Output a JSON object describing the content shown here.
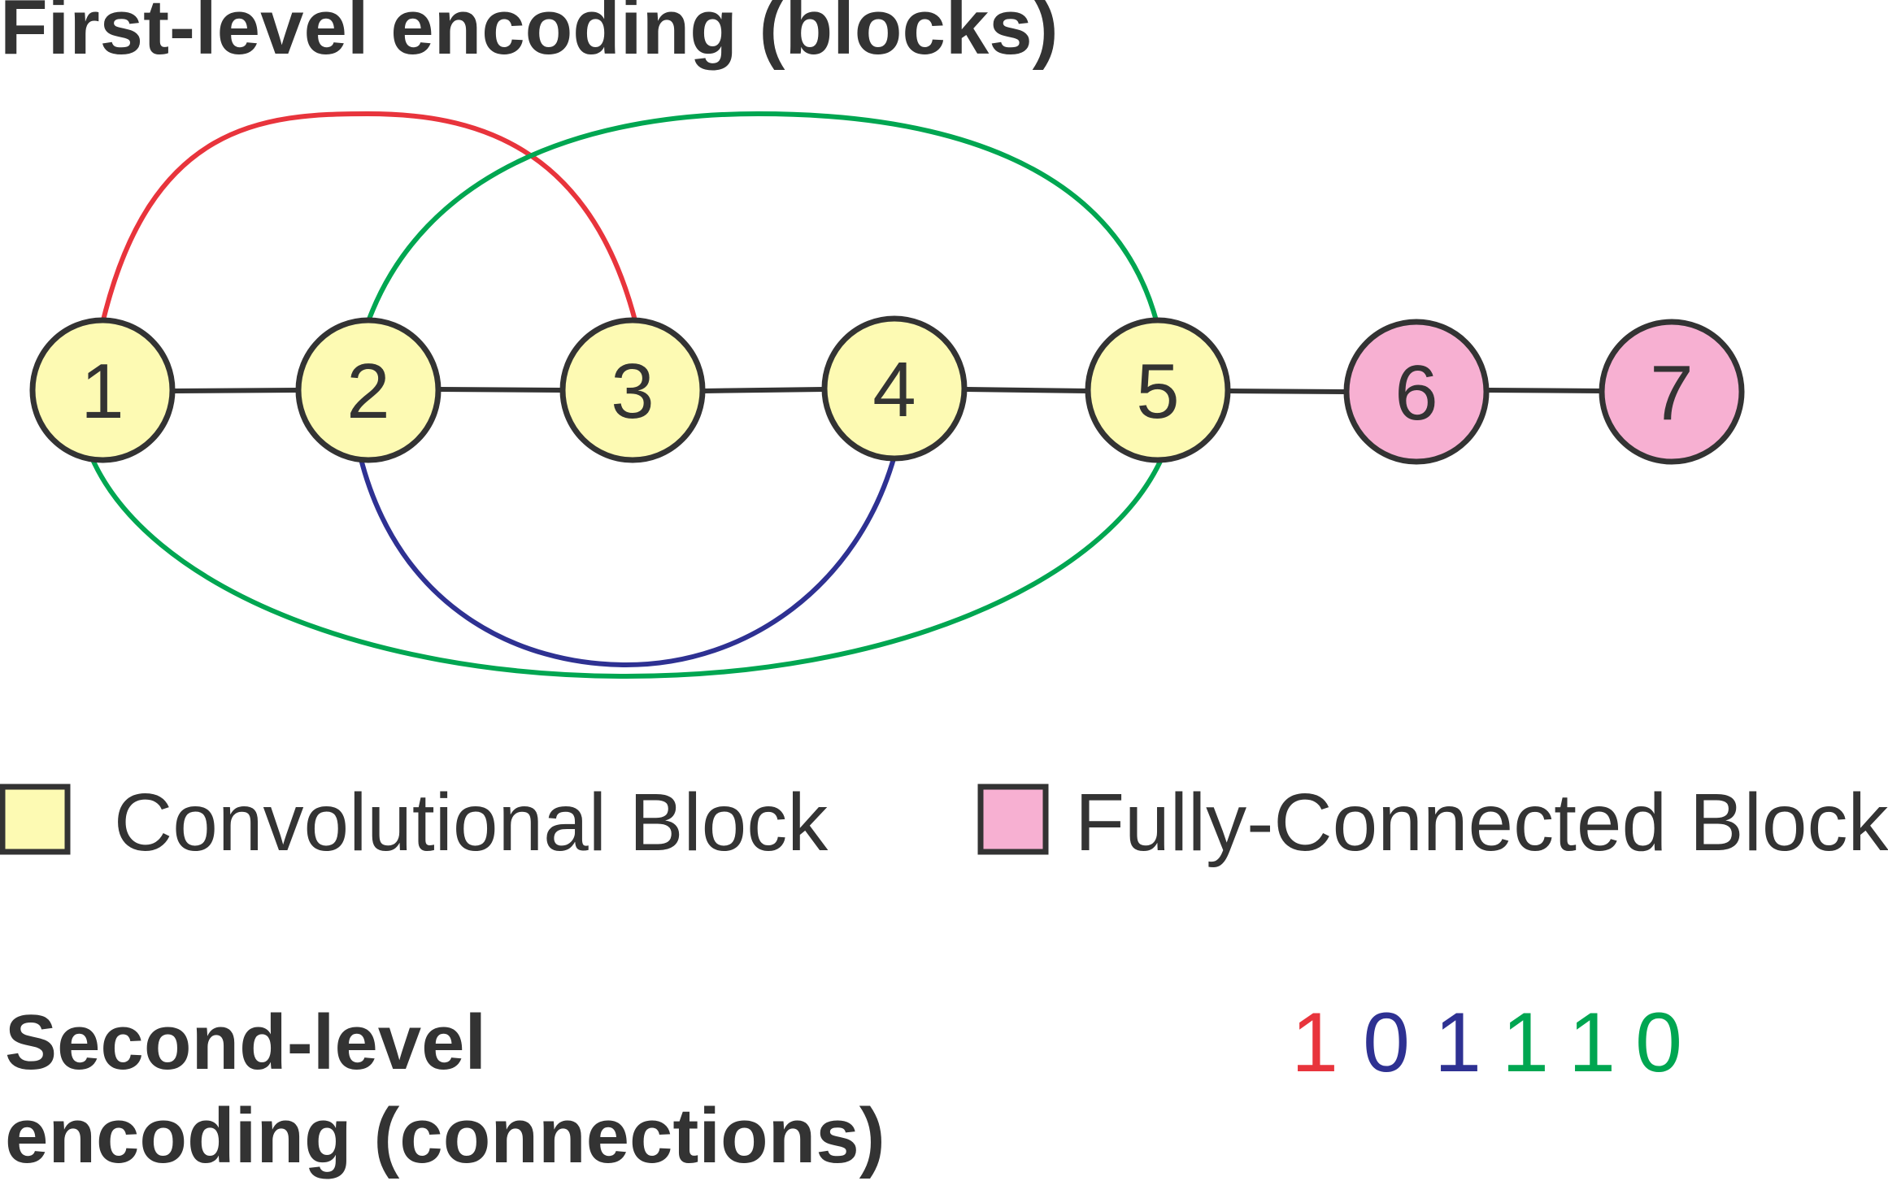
{
  "title": "First-level encoding (blocks)",
  "second_title": {
    "line1": "Second-level",
    "line2": "encoding (connections)"
  },
  "colors": {
    "text": "#333333",
    "convolutional_fill": "#fdfab3",
    "fully_connected_fill": "#f7b0d2",
    "node_stroke": "#333333",
    "red": "#e8343c",
    "green": "#00a651",
    "blue": "#2e3192"
  },
  "nodes": [
    {
      "id": "1",
      "label": "1",
      "type": "convolutional"
    },
    {
      "id": "2",
      "label": "2",
      "type": "convolutional"
    },
    {
      "id": "3",
      "label": "3",
      "type": "convolutional"
    },
    {
      "id": "4",
      "label": "4",
      "type": "convolutional"
    },
    {
      "id": "5",
      "label": "5",
      "type": "convolutional"
    },
    {
      "id": "6",
      "label": "6",
      "type": "fully_connected"
    },
    {
      "id": "7",
      "label": "7",
      "type": "fully_connected"
    }
  ],
  "chain_edges": [
    {
      "from": "1",
      "to": "2"
    },
    {
      "from": "2",
      "to": "3"
    },
    {
      "from": "3",
      "to": "4"
    },
    {
      "from": "4",
      "to": "5"
    },
    {
      "from": "5",
      "to": "6"
    },
    {
      "from": "6",
      "to": "7"
    }
  ],
  "skip_connections": [
    {
      "from": "1",
      "to": "3",
      "color": "red"
    },
    {
      "from": "2",
      "to": "5",
      "color": "green"
    },
    {
      "from": "2",
      "to": "4",
      "color": "blue"
    },
    {
      "from": "1",
      "to": "5",
      "color": "green"
    }
  ],
  "legend": [
    {
      "label": "Convolutional Block",
      "type": "convolutional"
    },
    {
      "label": "Fully-Connected Block",
      "type": "fully_connected"
    }
  ],
  "encoding_bits": [
    {
      "value": "1",
      "color": "red"
    },
    {
      "value": "0",
      "color": "blue"
    },
    {
      "value": "1",
      "color": "blue"
    },
    {
      "value": "1",
      "color": "green"
    },
    {
      "value": "1",
      "color": "green"
    },
    {
      "value": "0",
      "color": "green"
    }
  ]
}
